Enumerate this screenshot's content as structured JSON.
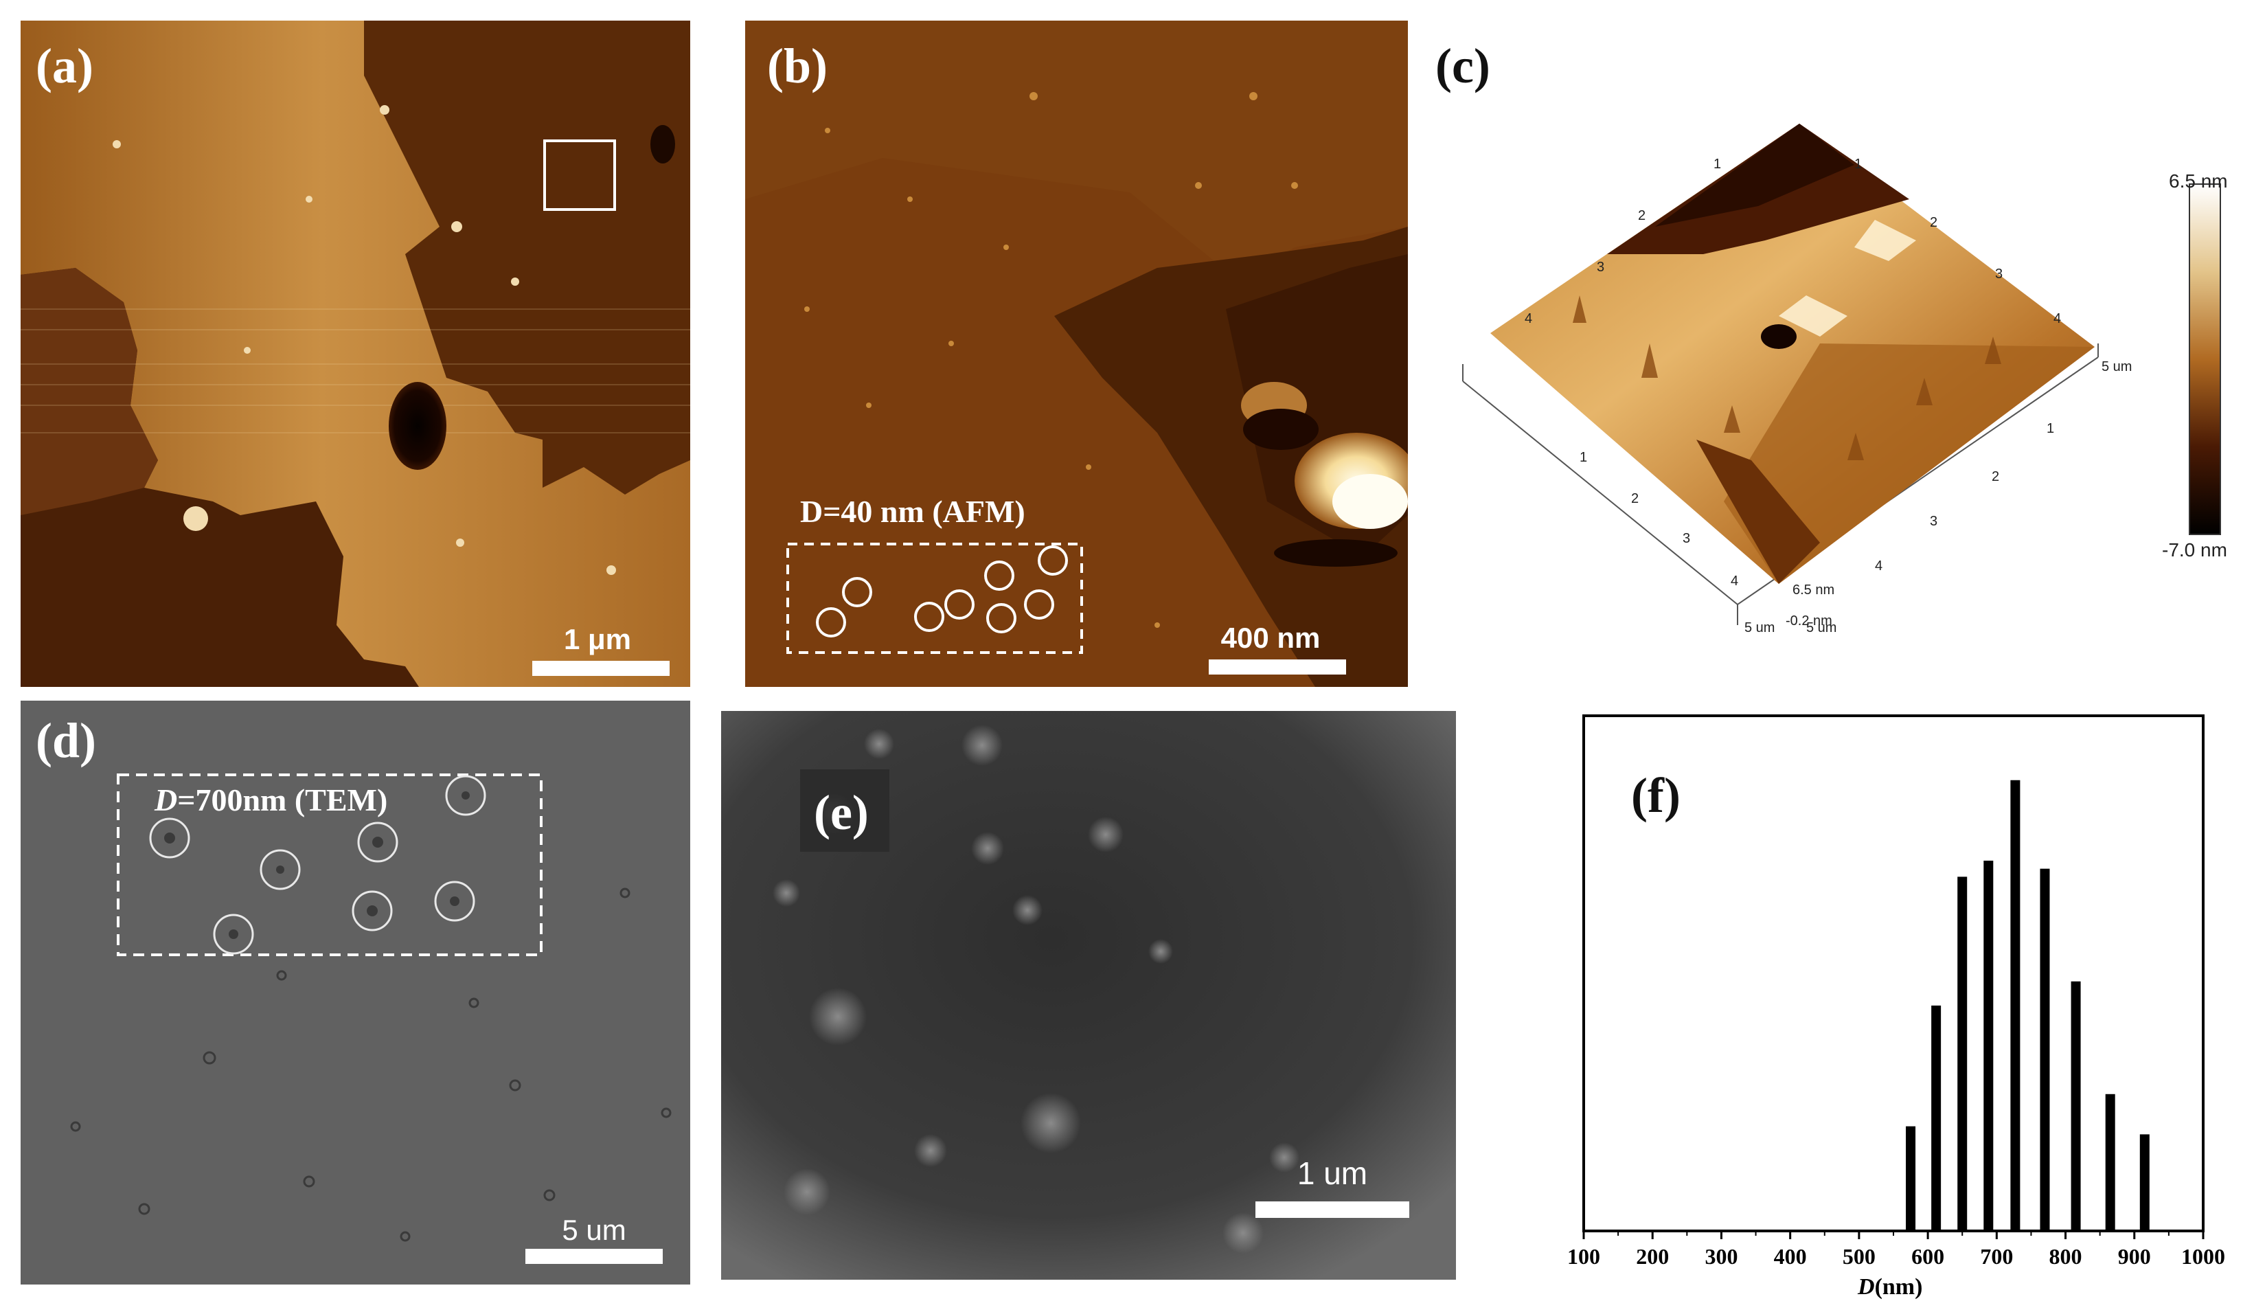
{
  "panels": {
    "a": {
      "label": "(a)",
      "scale_bar": "1 μm"
    },
    "b": {
      "label": "(b)",
      "scale_bar": "400 nm",
      "annotation": "D=40 nm (AFM)"
    },
    "c": {
      "label": "(c)",
      "colorbar_max": "6.5 nm",
      "colorbar_min": "-7.0 nm",
      "axis_labels_left": [
        "1",
        "2",
        "3",
        "4",
        "5 um"
      ],
      "axis_labels_right": [
        "1",
        "2",
        "3",
        "4",
        "5 um"
      ],
      "axis_labels_top_left": [
        "1",
        "2",
        "3",
        "4"
      ],
      "axis_labels_top_right": [
        "1",
        "2",
        "3",
        "4",
        "5 um"
      ],
      "z_labels": [
        "6.5 nm",
        "-0.2 nm"
      ]
    },
    "d": {
      "label": "(d)",
      "scale_bar": "5 um",
      "annotation_d": "D",
      "annotation_rest": "=700nm (TEM)"
    },
    "e": {
      "label": "(e)",
      "scale_bar": "1 um"
    },
    "f": {
      "label": "(f)"
    }
  },
  "chart_data": {
    "type": "bar",
    "title": "",
    "xlabel_d": "D",
    "xlabel_rest": "(nm)",
    "ylabel": "",
    "xlim": [
      100,
      1000
    ],
    "x_ticks": [
      100,
      200,
      300,
      400,
      500,
      600,
      700,
      800,
      900,
      1000
    ],
    "x": [
      575,
      612,
      650,
      688,
      727,
      770,
      815,
      865,
      915
    ],
    "values": [
      13,
      28,
      44,
      46,
      56,
      45,
      31,
      17,
      12
    ],
    "ylim": [
      0,
      64
    ],
    "grid": false,
    "legend": "none"
  },
  "colors": {
    "afm_dark": "#3a1503",
    "afm_mid": "#8a4a12",
    "afm_light": "#c98a3a",
    "tem_gray": "#5e5e5e",
    "sem_gray": "#3c3c3c"
  }
}
